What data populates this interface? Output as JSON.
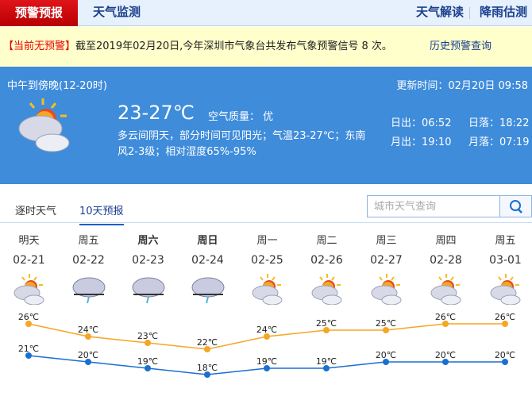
{
  "nav": {
    "active": "预警预报",
    "monitor": "天气监测",
    "interpret": "天气解读",
    "rain": "降雨估测"
  },
  "warning": {
    "status": "【当前无预警】",
    "text": "截至2019年02月20日,今年深圳市气象台共发布气象预警信号 8 次。",
    "history_link": "历史预警查询"
  },
  "current": {
    "period": "中午到傍晚(12-20时)",
    "updated": "更新时间：02月20日 09:58",
    "temp": "23-27℃",
    "air_quality": "空气质量： 优",
    "desc1": "多云间阴天，部分时间可见阳光；气温23-27℃；东南",
    "desc2": "风2-3级；相对湿度65%-95%",
    "sunrise": "日出：06:52",
    "sunset": "日落：18:22",
    "moonrise": "月出：19:10",
    "moonset": "月落：07:19",
    "icon": "partly-cloudy-icon"
  },
  "tabs": [
    {
      "label": "逐时天气"
    },
    {
      "label": "10天预报",
      "active": true
    }
  ],
  "search": {
    "placeholder": "城市天气查询"
  },
  "colors": {
    "high": "#f5a623",
    "low": "#1a6fd0",
    "panel": "#3f8cdb"
  },
  "chart_data": {
    "type": "line",
    "categories": [
      "02-21",
      "02-22",
      "02-23",
      "02-24",
      "02-25",
      "02-26",
      "02-27",
      "02-28",
      "03-01"
    ],
    "weekdays": [
      "明天",
      "周五",
      "周六",
      "周日",
      "周一",
      "周二",
      "周三",
      "周四",
      "周五"
    ],
    "icons": [
      "partly-cloudy",
      "rain",
      "rain",
      "rain",
      "partly-cloudy",
      "partly-cloudy",
      "partly-cloudy",
      "partly-cloudy",
      "partly-cloudy"
    ],
    "series": [
      {
        "values": [
          26,
          24,
          23,
          22,
          24,
          25,
          25,
          26,
          26
        ]
      },
      {
        "values": [
          21,
          20,
          19,
          18,
          19,
          19,
          20,
          20,
          20
        ]
      }
    ],
    "unit": "℃"
  }
}
